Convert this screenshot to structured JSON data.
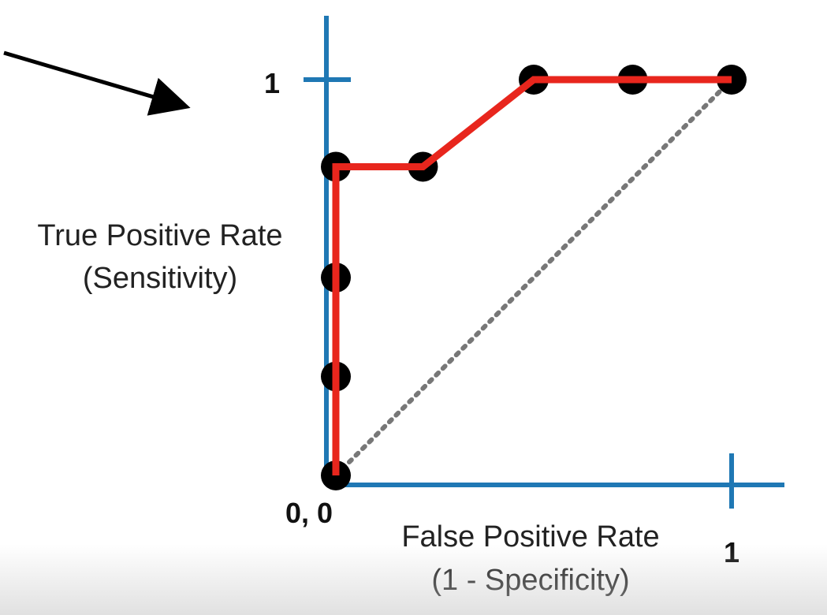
{
  "chart_data": {
    "type": "line",
    "title": "",
    "xlabel_lines": [
      "False Positive Rate",
      "(1 - Specificity)"
    ],
    "ylabel_lines": [
      "True Positive Rate",
      "(Sensitivity)"
    ],
    "xlim": [
      0,
      1
    ],
    "ylim": [
      0,
      1
    ],
    "origin_label": "0, 0",
    "x_tick_label": "1",
    "y_tick_label": "1",
    "grid": false,
    "series": [
      {
        "points": [
          {
            "x": 0,
            "y": 0
          },
          {
            "x": 0,
            "y": 0.25
          },
          {
            "x": 0,
            "y": 0.5
          },
          {
            "x": 0,
            "y": 0.78
          },
          {
            "x": 0.22,
            "y": 0.78
          },
          {
            "x": 0.5,
            "y": 1
          },
          {
            "x": 0.75,
            "y": 1
          },
          {
            "x": 1,
            "y": 1
          }
        ],
        "line": [
          {
            "x": 0,
            "y": 0
          },
          {
            "x": 0,
            "y": 0.78
          },
          {
            "x": 0.22,
            "y": 0.78
          },
          {
            "x": 0.5,
            "y": 1
          },
          {
            "x": 1,
            "y": 1
          }
        ],
        "color": "#e8261d",
        "marker_color": "#000000"
      }
    ],
    "reference_line": {
      "from": {
        "x": 0,
        "y": 0
      },
      "to": {
        "x": 1,
        "y": 1
      },
      "style": "dotted",
      "color": "#777777"
    },
    "axis_color": "#1f78b4",
    "annotation": {
      "type": "arrow",
      "color": "#000000"
    }
  }
}
